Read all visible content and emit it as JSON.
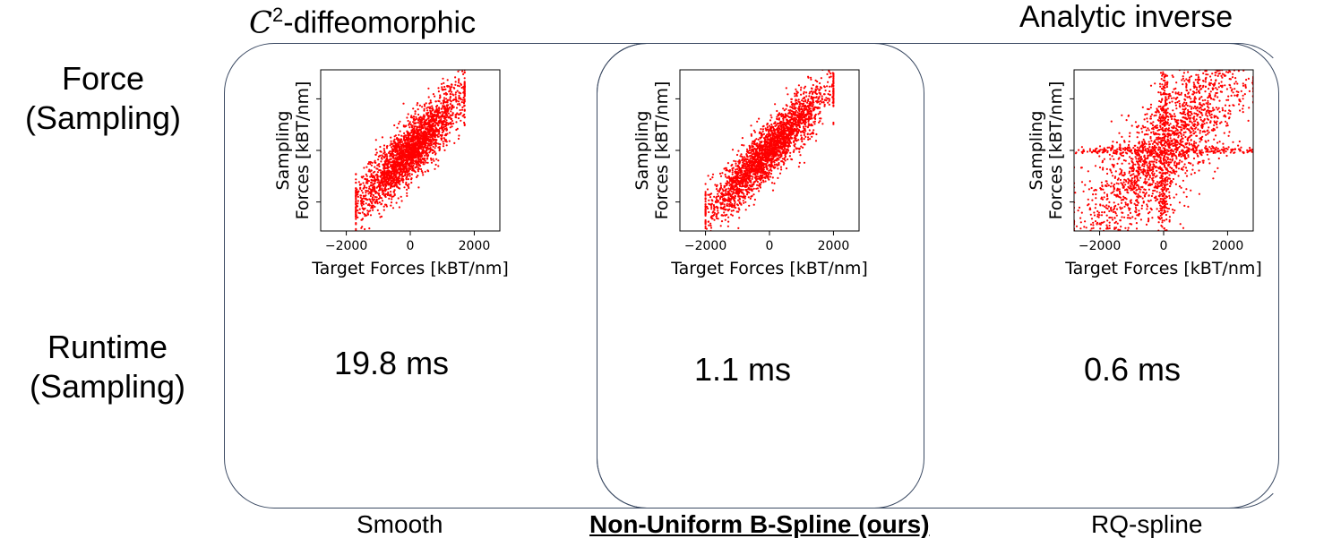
{
  "top_labels": {
    "left_prefix": "C",
    "left_superscript": "2",
    "left_suffix": "-diffeomorphic",
    "right": "Analytic inverse"
  },
  "row_labels": {
    "force": [
      "Force",
      "(Sampling)"
    ],
    "runtime": [
      "Runtime",
      "(Sampling)"
    ]
  },
  "runtimes": [
    "19.8 ms",
    "1.1 ms",
    "0.6 ms"
  ],
  "captions": [
    "Smooth",
    "Non-Uniform B-Spline (ours)",
    "RQ-spline"
  ],
  "axis_text": {
    "xlabel": "Target Forces [kBT/nm]",
    "ylabel_line1": "Sampling",
    "ylabel_line2": "Forces [kBT/nm]",
    "xticks": [
      "−2000",
      "0",
      "2000"
    ]
  },
  "colors": {
    "points": "#ff0000",
    "box_border": "#3b4a63"
  },
  "chart_data": [
    {
      "type": "scatter",
      "method": "Smooth",
      "xlabel": "Target Forces [kBT/nm]",
      "ylabel": "Sampling Forces [kBT/nm]",
      "x_ticks": [
        -2000,
        0,
        2000
      ],
      "xlim": [
        -2800,
        2800
      ],
      "ylim": [
        -2500,
        2500
      ],
      "distribution": {
        "slope": 1.0,
        "spread": 450,
        "x_range": [
          -1700,
          1700
        ],
        "cross_outliers": false
      }
    },
    {
      "type": "scatter",
      "method": "Non-Uniform B-Spline (ours)",
      "xlabel": "Target Forces [kBT/nm]",
      "ylabel": "Sampling Forces [kBT/nm]",
      "x_ticks": [
        -2000,
        0,
        2000
      ],
      "xlim": [
        -2800,
        2800
      ],
      "ylim": [
        -2500,
        2500
      ],
      "distribution": {
        "slope": 1.0,
        "spread": 420,
        "x_range": [
          -2000,
          2000
        ],
        "cross_outliers": false
      }
    },
    {
      "type": "scatter",
      "method": "RQ-spline",
      "xlabel": "Target Forces [kBT/nm]",
      "ylabel": "Sampling Forces [kBT/nm]",
      "x_ticks": [
        -2000,
        0,
        2000
      ],
      "xlim": [
        -2800,
        2800
      ],
      "ylim": [
        -2500,
        2500
      ],
      "distribution": {
        "slope": 1.0,
        "spread": 900,
        "x_range": [
          -2800,
          2800
        ],
        "cross_outliers": true
      }
    }
  ]
}
